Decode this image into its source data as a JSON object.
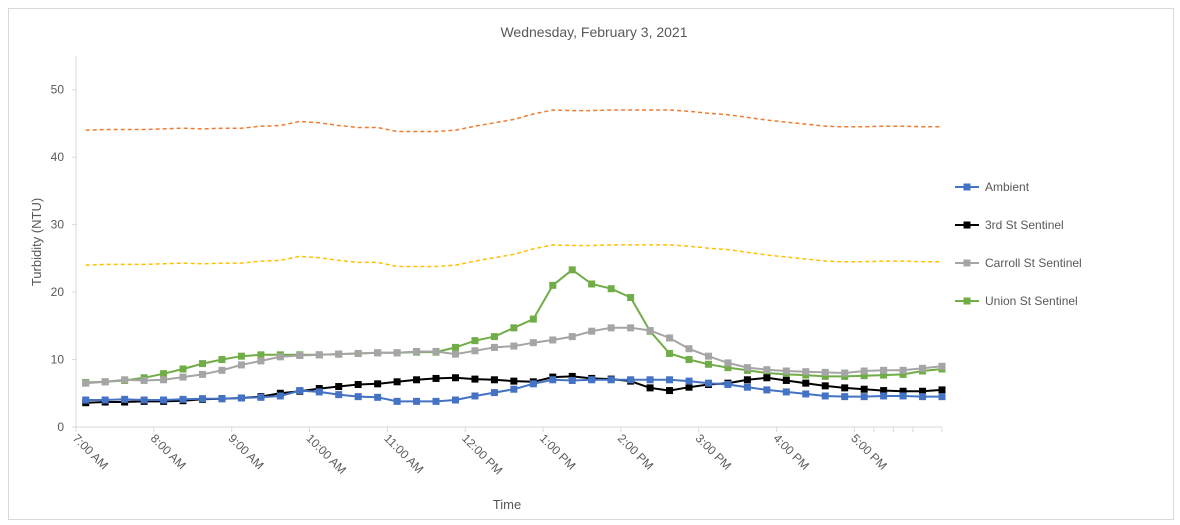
{
  "chart_data": {
    "type": "line",
    "title": "Wednesday, February 3, 2021",
    "xlabel": "Time",
    "ylabel": "Turbidity (NTU)",
    "ylim": [
      0,
      55
    ],
    "yticks": [
      0,
      10,
      20,
      30,
      40,
      50
    ],
    "grid": false,
    "legend_position": "right",
    "x_tick_labels": [
      "7:00 AM",
      "8:00 AM",
      "9:00 AM",
      "10:00 AM",
      "11:00 AM",
      "12:00 PM",
      "1:00 PM",
      "2:00 PM",
      "3:00 PM",
      "4:00 PM",
      "5:00 PM"
    ],
    "x_hours_per_point": 0.25,
    "x_start_hour": 7.0,
    "series": [
      {
        "name": "Ambient",
        "color": "#4472c4",
        "marker": "square",
        "values": [
          4.0,
          4.0,
          4.1,
          4.0,
          4.0,
          4.1,
          4.2,
          4.2,
          4.3,
          4.4,
          4.6,
          5.4,
          5.2,
          4.8,
          4.5,
          4.4,
          3.8,
          3.8,
          3.8,
          4.0,
          4.6,
          5.1,
          5.6,
          6.4,
          7.0,
          6.9,
          7.0,
          7.0,
          7.0,
          7.0,
          7.0,
          6.8,
          6.5,
          6.3,
          5.9,
          5.5,
          5.2,
          4.9,
          4.6,
          4.5,
          4.5,
          4.6,
          4.6,
          4.5,
          4.5
        ]
      },
      {
        "name": "3rd St Sentinel",
        "color": "#000000",
        "marker": "square",
        "values": [
          3.6,
          3.7,
          3.7,
          3.8,
          3.8,
          3.9,
          4.1,
          4.2,
          4.3,
          4.5,
          5.0,
          5.3,
          5.7,
          6.0,
          6.3,
          6.4,
          6.7,
          7.0,
          7.2,
          7.3,
          7.1,
          7.0,
          6.8,
          6.7,
          7.4,
          7.5,
          7.2,
          7.1,
          6.8,
          5.8,
          5.4,
          5.9,
          6.3,
          6.5,
          7.0,
          7.3,
          6.9,
          6.5,
          6.1,
          5.8,
          5.6,
          5.4,
          5.3,
          5.3,
          5.5
        ]
      },
      {
        "name": "Carroll St Sentinel",
        "color": "#a5a5a5",
        "marker": "square",
        "values": [
          6.5,
          6.7,
          7.0,
          6.9,
          7.0,
          7.4,
          7.8,
          8.4,
          9.2,
          9.8,
          10.4,
          10.6,
          10.7,
          10.8,
          10.9,
          11.0,
          11.0,
          11.2,
          11.2,
          10.8,
          11.3,
          11.8,
          12.0,
          12.5,
          12.9,
          13.4,
          14.2,
          14.7,
          14.7,
          14.3,
          13.2,
          11.6,
          10.5,
          9.5,
          8.8,
          8.5,
          8.3,
          8.2,
          8.1,
          8.0,
          8.3,
          8.4,
          8.4,
          8.7,
          9.0
        ]
      },
      {
        "name": "Union St Sentinel",
        "color": "#70ad47",
        "marker": "square",
        "values": [
          6.6,
          6.7,
          6.9,
          7.3,
          7.9,
          8.6,
          9.4,
          10.0,
          10.5,
          10.7,
          10.7,
          10.7,
          10.7,
          10.8,
          10.9,
          11.0,
          11.0,
          11.1,
          11.1,
          11.8,
          12.8,
          13.4,
          14.7,
          16.0,
          21.0,
          23.3,
          21.2,
          20.5,
          19.2,
          14.2,
          10.9,
          10.0,
          9.3,
          8.8,
          8.4,
          8.0,
          7.8,
          7.7,
          7.5,
          7.5,
          7.6,
          7.7,
          7.8,
          8.3,
          8.6
        ]
      },
      {
        "name": "",
        "color": "#ed7d31",
        "dash": true,
        "values": [
          44.0,
          44.1,
          44.1,
          44.1,
          44.2,
          44.3,
          44.2,
          44.3,
          44.3,
          44.6,
          44.7,
          45.3,
          45.1,
          44.7,
          44.4,
          44.4,
          43.8,
          43.8,
          43.8,
          44.0,
          44.6,
          45.1,
          45.6,
          46.4,
          47.0,
          46.9,
          46.9,
          47.0,
          47.0,
          47.0,
          47.0,
          46.8,
          46.5,
          46.3,
          45.9,
          45.5,
          45.2,
          44.9,
          44.6,
          44.5,
          44.5,
          44.6,
          44.6,
          44.5,
          44.5
        ]
      },
      {
        "name": "",
        "color": "#ffc000",
        "dash": true,
        "values": [
          24.0,
          24.1,
          24.1,
          24.1,
          24.2,
          24.3,
          24.2,
          24.3,
          24.3,
          24.6,
          24.7,
          25.3,
          25.1,
          24.7,
          24.4,
          24.4,
          23.8,
          23.8,
          23.8,
          24.0,
          24.6,
          25.1,
          25.6,
          26.4,
          27.0,
          26.9,
          26.9,
          27.0,
          27.0,
          27.0,
          27.0,
          26.8,
          26.5,
          26.3,
          25.9,
          25.5,
          25.2,
          24.9,
          24.6,
          24.5,
          24.5,
          24.6,
          24.6,
          24.5,
          24.5
        ]
      }
    ]
  }
}
